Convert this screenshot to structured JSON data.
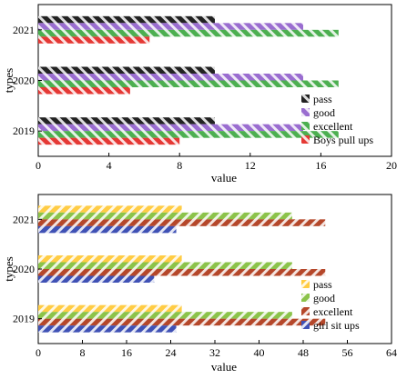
{
  "colors": {
    "pass": "#ffcc44",
    "good": "#9a6dd0",
    "good_bottom": "#8bc34a",
    "excellent": "#4caf50",
    "excellent_bottom": "#b5472a",
    "boys": "#e53935",
    "girls": "#3f51b5",
    "pass_top": "#222222"
  },
  "chart_data": [
    {
      "type": "bar",
      "orientation": "horizontal",
      "categories": [
        "2019",
        "2020",
        "2021"
      ],
      "xlabel": "value",
      "ylabel": "types",
      "xlim": [
        0,
        20
      ],
      "xticks": [
        0,
        4,
        8,
        12,
        16,
        20
      ],
      "legend_position": "bottom-right",
      "series": [
        {
          "name": "pass",
          "values": [
            10,
            10,
            10
          ],
          "color_key": "pass_top"
        },
        {
          "name": "good",
          "values": [
            15,
            15,
            15
          ],
          "color_key": "good"
        },
        {
          "name": "excellent",
          "values": [
            17,
            17,
            17
          ],
          "color_key": "excellent"
        },
        {
          "name": "Boys pull ups",
          "values": [
            8,
            5.2,
            6.3
          ],
          "color_key": "boys"
        }
      ]
    },
    {
      "type": "bar",
      "orientation": "horizontal",
      "categories": [
        "2019",
        "2020",
        "2021"
      ],
      "xlabel": "value",
      "ylabel": "types",
      "xlim": [
        0,
        64
      ],
      "xticks": [
        0,
        8,
        16,
        24,
        32,
        40,
        48,
        56,
        64
      ],
      "legend_position": "bottom-right",
      "series": [
        {
          "name": "pass",
          "values": [
            26,
            26,
            26
          ],
          "color_key": "pass"
        },
        {
          "name": "good",
          "values": [
            46,
            46,
            46
          ],
          "color_key": "good_bottom"
        },
        {
          "name": "excellent",
          "values": [
            52,
            52,
            52
          ],
          "color_key": "excellent_bottom"
        },
        {
          "name": "girl sit ups",
          "values": [
            25,
            21,
            25
          ],
          "color_key": "girls"
        }
      ]
    }
  ]
}
